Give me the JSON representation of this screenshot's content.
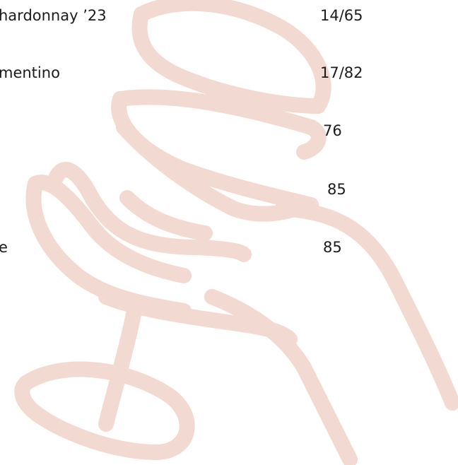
{
  "menu": {
    "items": [
      {
        "name": "hardonnay ’23",
        "price": "14/65"
      },
      {
        "name": "mentino",
        "price": "17/82"
      },
      {
        "price": "76"
      },
      {
        "price": "85"
      },
      {
        "name": "e",
        "price": "85"
      }
    ]
  }
}
